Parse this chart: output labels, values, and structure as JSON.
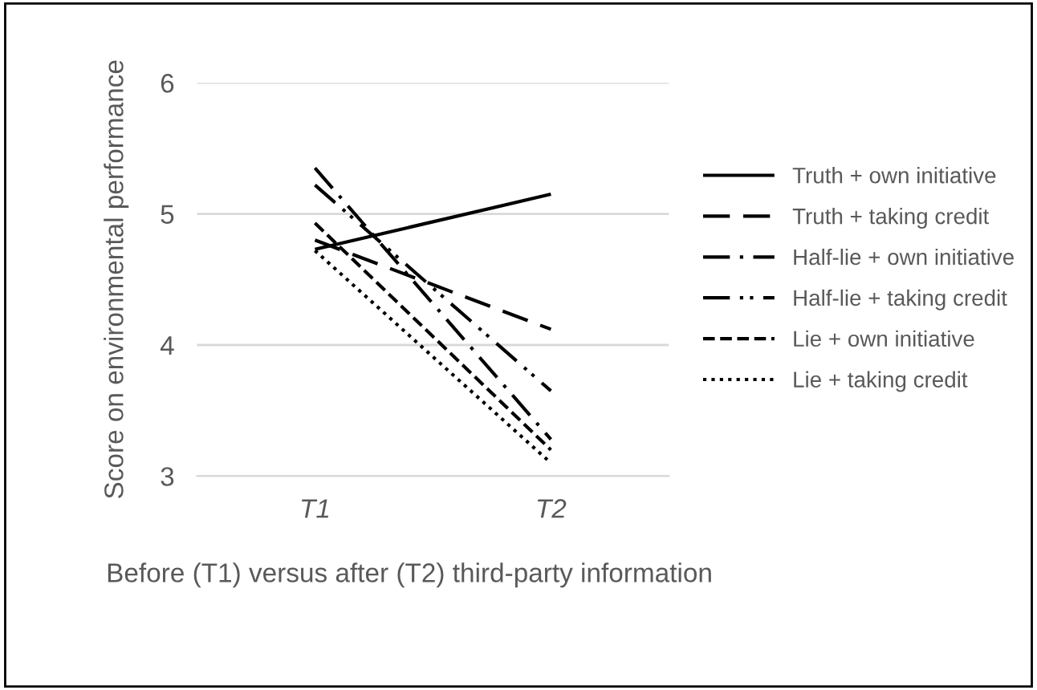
{
  "chart_data": {
    "type": "line",
    "xlabel": "Before (T1) versus after (T2) third-party information",
    "ylabel": "Score on environmental performance",
    "categories": [
      "T1",
      "T2"
    ],
    "ylim": [
      3,
      6
    ],
    "yticks": [
      3,
      4,
      5,
      6
    ],
    "grid": "y",
    "legend": "right",
    "marker": "none",
    "series": [
      {
        "name": "Truth + own initiative",
        "color": "#000000",
        "line_style": "solid",
        "values": [
          4.73,
          5.15
        ]
      },
      {
        "name": "Truth + taking credit",
        "color": "#000000",
        "line_style": "longdash",
        "values": [
          4.8,
          4.12
        ]
      },
      {
        "name": "Half-lie + own initiative",
        "color": "#000000",
        "line_style": "dashdot",
        "values": [
          5.35,
          3.28
        ]
      },
      {
        "name": "Half-lie + taking credit",
        "color": "#000000",
        "line_style": "dashdotdot",
        "values": [
          5.22,
          3.65
        ]
      },
      {
        "name": "Lie + own initiative",
        "color": "#000000",
        "line_style": "dashed",
        "values": [
          4.93,
          3.2
        ]
      },
      {
        "name": "Lie + taking credit",
        "color": "#000000",
        "line_style": "dotted",
        "values": [
          4.72,
          3.1
        ]
      }
    ]
  }
}
